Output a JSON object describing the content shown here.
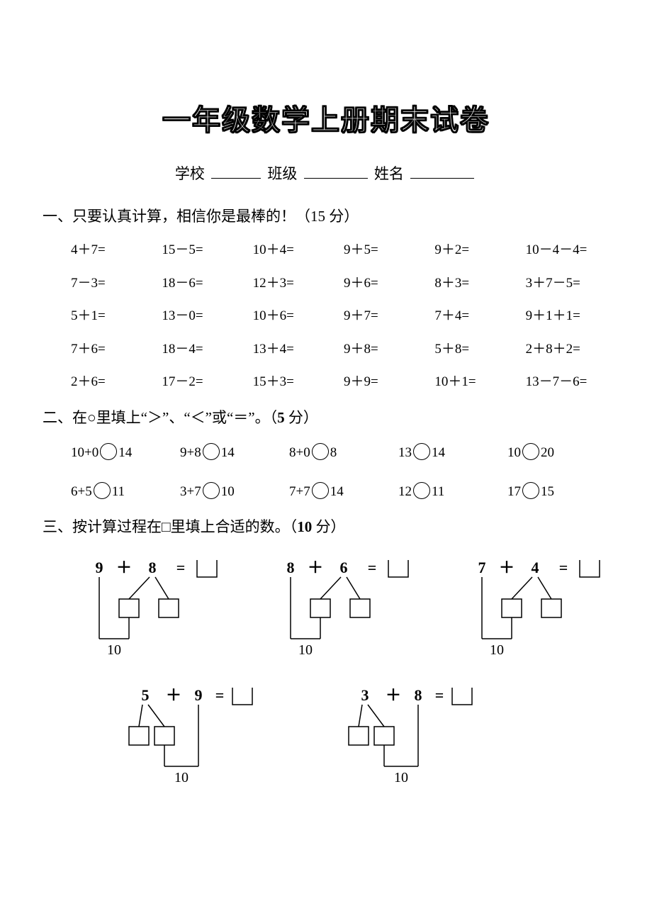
{
  "title": "一年级数学上册期末试卷",
  "info": {
    "school_label": "学校",
    "class_label": "班级",
    "name_label": "姓名"
  },
  "q1": {
    "heading_prefix": "一、只要认真计算，相信",
    "heading_emph": "你",
    "heading_suffix": "是最棒的！（15 分）",
    "rows": [
      [
        "4＋7=",
        "15－5=",
        "10＋4=",
        "9＋5=",
        "9＋2=",
        "10－4－4="
      ],
      [
        "7－3=",
        "18－6=",
        "12＋3=",
        "9＋6=",
        "8＋3=",
        "3＋7－5="
      ],
      [
        "5＋1=",
        "13－0=",
        "10＋6=",
        "9＋7=",
        "7＋4=",
        "9＋1＋1="
      ],
      [
        "7＋6=",
        "18－4=",
        "13＋4=",
        "9＋8=",
        "5＋8=",
        "2＋8＋2="
      ],
      [
        "2＋6=",
        "17－2=",
        "15＋3=",
        "9＋9=",
        "10＋1=",
        "13－7－6="
      ]
    ]
  },
  "q2": {
    "heading": "二、在○里填上“＞”、“＜”或“＝”。（5 分）",
    "rows": [
      [
        {
          "l": "10+0",
          "r": "14"
        },
        {
          "l": "9+8",
          "r": "14"
        },
        {
          "l": "8+0",
          "r": "8"
        },
        {
          "l": "13",
          "r": "14"
        },
        {
          "l": "10",
          "r": "20"
        }
      ],
      [
        {
          "l": "6+5",
          "r": "11"
        },
        {
          "l": "3+7",
          "r": "10"
        },
        {
          "l": "7+7",
          "r": "14"
        },
        {
          "l": "12",
          "r": "11"
        },
        {
          "l": "17",
          "r": "15"
        }
      ]
    ]
  },
  "q3": {
    "heading": "三、按计算过程在□里填上合适的数。（10 分）",
    "row1": [
      {
        "a": "9",
        "b": "8",
        "target": "10",
        "split_from": "b"
      },
      {
        "a": "8",
        "b": "6",
        "target": "10",
        "split_from": "b"
      },
      {
        "a": "7",
        "b": "4",
        "target": "10",
        "split_from": "b"
      }
    ],
    "row2": [
      {
        "a": "5",
        "b": "9",
        "target": "10",
        "split_from": "a"
      },
      {
        "a": "3",
        "b": "8",
        "target": "10",
        "split_from": "a"
      }
    ]
  },
  "colors": {
    "page_bg": "#ffffff",
    "text": "#000000",
    "stroke": "#000000"
  }
}
